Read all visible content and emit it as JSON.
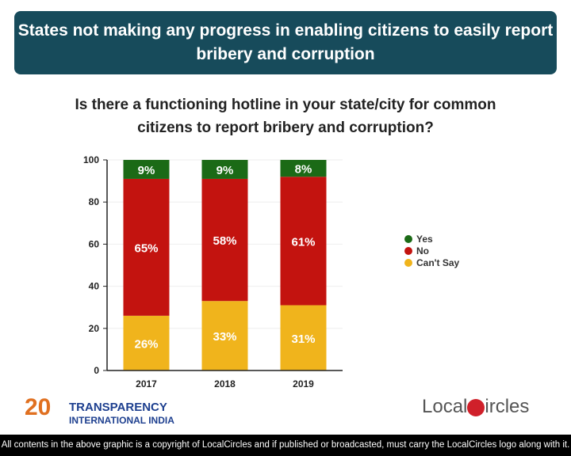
{
  "header": {
    "title": "States not making any progress in enabling citizens to easily report bribery and corruption"
  },
  "question": "Is there a functioning hotline in your state/city for common citizens to report bribery and corruption?",
  "chart_data": {
    "type": "bar",
    "stacked": true,
    "categories": [
      "2017",
      "2018",
      "2019"
    ],
    "series": [
      {
        "name": "Can't Say",
        "values": [
          26,
          33,
          31
        ],
        "labels": [
          "26%",
          "33%",
          "31%"
        ],
        "color": "#f0b41c"
      },
      {
        "name": "No",
        "values": [
          65,
          58,
          61
        ],
        "labels": [
          "65%",
          "58%",
          "61%"
        ],
        "color": "#c3130f"
      },
      {
        "name": "Yes",
        "values": [
          9,
          9,
          8
        ],
        "labels": [
          "9%",
          "9%",
          "8%"
        ],
        "color": "#1b6a16"
      }
    ],
    "ylim": [
      0,
      100
    ],
    "yticks": [
      "0",
      "20",
      "40",
      "60",
      "80",
      "100"
    ],
    "grid": true,
    "legend": "right"
  },
  "legend_order": [
    "Yes",
    "No",
    "Can't Say"
  ],
  "logos": {
    "ti_line1": "TRANSPARENCY",
    "ti_line2": "INTERNATIONAL INDIA",
    "ti_number": "20",
    "localcircles_left": "Local",
    "localcircles_right": "ircles"
  },
  "footer": "All contents in the above graphic is a copyright of LocalCircles and if published or broadcasted, must carry the LocalCircles logo along with it."
}
